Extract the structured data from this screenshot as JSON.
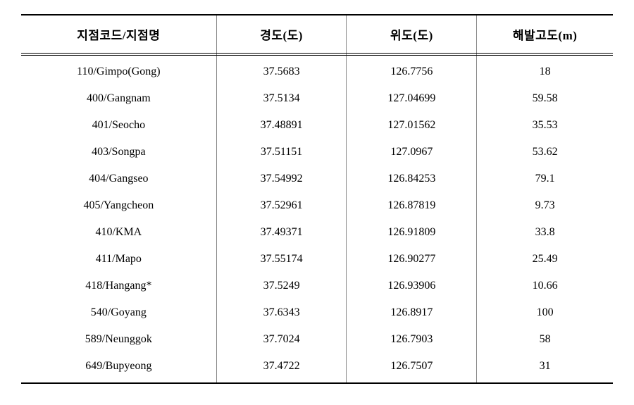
{
  "table": {
    "type": "table",
    "background_color": "#ffffff",
    "border_color": "#000000",
    "col_sep_color": "#888888",
    "header_fontsize": 17,
    "body_fontsize": 16,
    "header_weight": 700,
    "columns": [
      {
        "label": "지점코드/지점명",
        "width_pct": 33,
        "align": "center"
      },
      {
        "label": "경도(도)",
        "width_pct": 22,
        "align": "center"
      },
      {
        "label": "위도(도)",
        "width_pct": 22,
        "align": "center"
      },
      {
        "label": "해발고도(m)",
        "width_pct": 23,
        "align": "center"
      }
    ],
    "rows": [
      [
        "110/Gimpo(Gong)",
        "37.5683",
        "126.7756",
        "18"
      ],
      [
        "400/Gangnam",
        "37.5134",
        "127.04699",
        "59.58"
      ],
      [
        "401/Seocho",
        "37.48891",
        "127.01562",
        "35.53"
      ],
      [
        "403/Songpa",
        "37.51151",
        "127.0967",
        "53.62"
      ],
      [
        "404/Gangseo",
        "37.54992",
        "126.84253",
        "79.1"
      ],
      [
        "405/Yangcheon",
        "37.52961",
        "126.87819",
        "9.73"
      ],
      [
        "410/KMA",
        "37.49371",
        "126.91809",
        "33.8"
      ],
      [
        "411/Mapo",
        "37.55174",
        "126.90277",
        "25.49"
      ],
      [
        "418/Hangang*",
        "37.5249",
        "126.93906",
        "10.66"
      ],
      [
        "540/Goyang",
        "37.6343",
        "126.8917",
        "100"
      ],
      [
        "589/Neunggok",
        "37.7024",
        "126.7903",
        "58"
      ],
      [
        "649/Bupyeong",
        "37.4722",
        "126.7507",
        "31"
      ]
    ]
  }
}
